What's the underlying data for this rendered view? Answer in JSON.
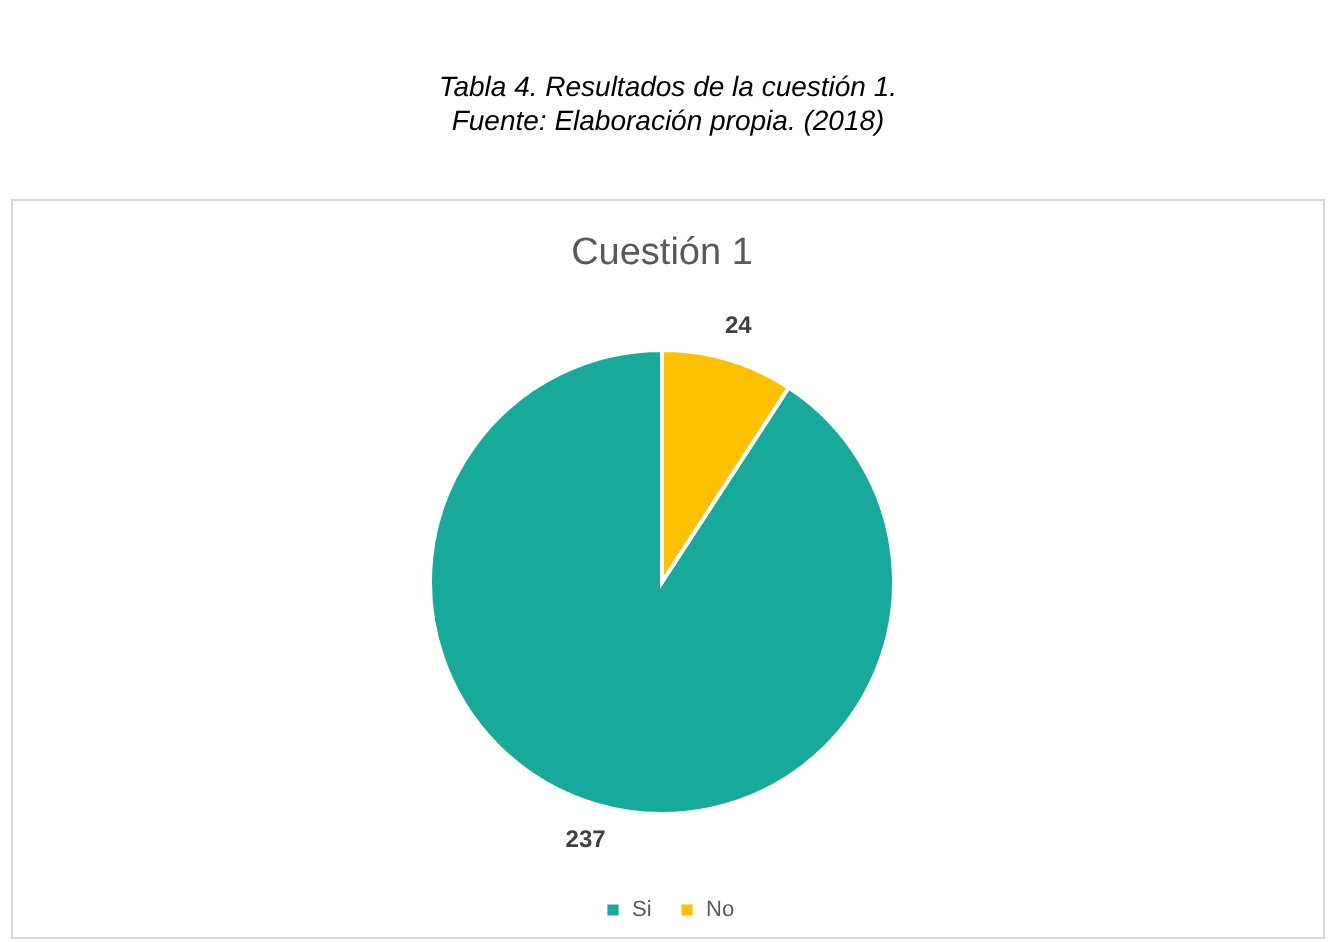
{
  "chart_data": {
    "type": "pie",
    "title": "Cuestión 1",
    "annotations": [
      "Tabla 4. Resultados de la cuestión 1.",
      "Fuente: Elaboración propia. (2018)"
    ],
    "categories": [
      "Si",
      "No"
    ],
    "values": [
      237,
      24
    ],
    "colors": [
      "#17a999",
      "#ffc000"
    ],
    "data_labels": true,
    "legend": "bottom"
  }
}
